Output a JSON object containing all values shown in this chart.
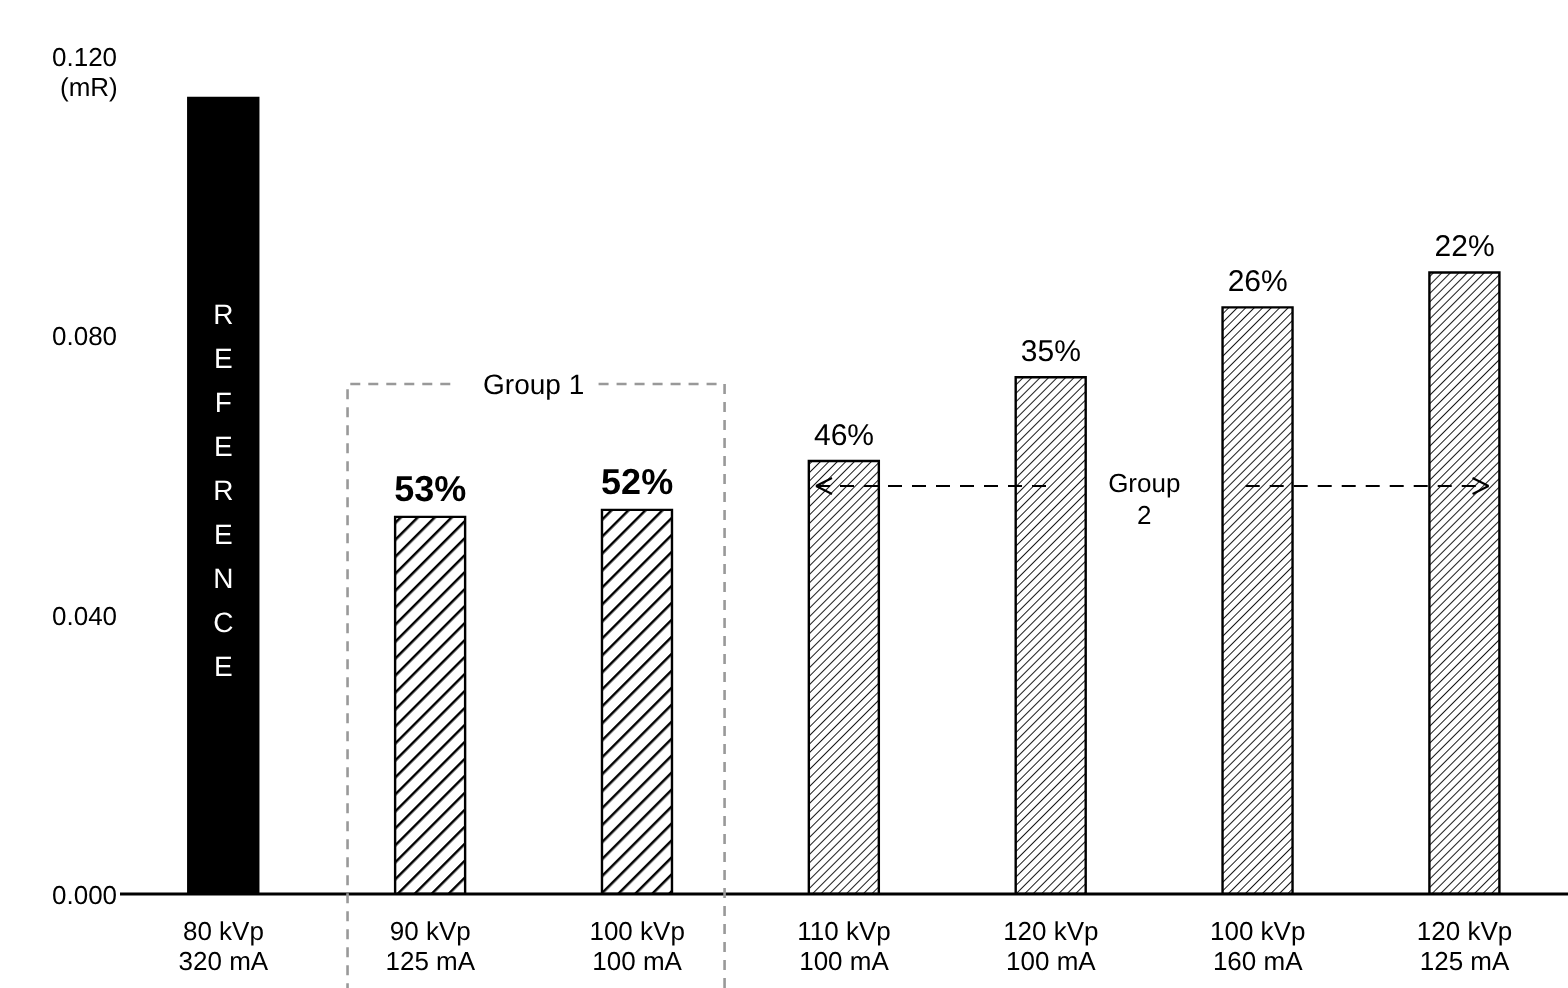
{
  "chart_data": {
    "type": "bar",
    "ylabel": "(mR)",
    "categories": [
      "80 kVp\n320 mA",
      "90 kVp\n125 mA",
      "100 kVp\n100 mA",
      "110 kVp\n100 mA",
      "120 kVp\n100 mA",
      "100 kVp\n160 mA",
      "120 kVp\n125 mA"
    ],
    "values": [
      0.114,
      0.054,
      0.055,
      0.062,
      0.074,
      0.084,
      0.089
    ],
    "color": "#000000",
    "ylim": [
      0,
      0.12
    ],
    "yticks": [
      {
        "value": 0,
        "label": "0.000"
      },
      {
        "value": 0.04,
        "label": "0.040"
      },
      {
        "value": 0.08,
        "label": "0.080"
      },
      {
        "value": 0.12,
        "label": "0.120"
      }
    ],
    "annotations": [
      "REFERENCE",
      "Group 1",
      "Group\n2",
      {
        "text": "53%",
        "x": "90 kVp\n125 mA",
        "y": 0.054
      },
      {
        "text": "52%",
        "x": "100 kVp\n100 mA",
        "y": 0.055
      },
      {
        "text": "46%",
        "x": "110 kVp\n100 mA",
        "y": 0.062
      },
      {
        "text": "35%",
        "x": "120 kVp\n100 mA",
        "y": 0.074
      },
      {
        "text": "26%",
        "x": "100 kVp\n160 mA",
        "y": 0.084
      },
      {
        "text": "22%",
        "x": "120 kVp\n125 mA",
        "y": 0.089
      }
    ]
  }
}
